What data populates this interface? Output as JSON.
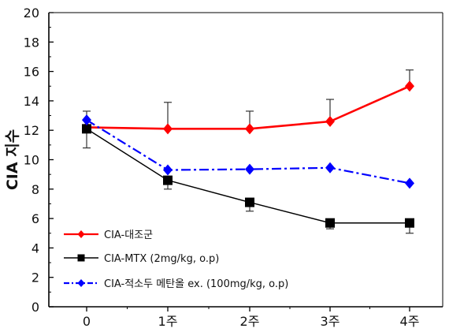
{
  "chart_data": {
    "type": "line",
    "xlabel": "",
    "ylabel": "CIA 지수",
    "categories": [
      "0",
      "1주",
      "2주",
      "3주",
      "4주"
    ],
    "ylim": [
      0,
      20
    ],
    "yticks": [
      0,
      2,
      4,
      6,
      8,
      10,
      12,
      14,
      16,
      18,
      20
    ],
    "grid": false,
    "legend_position": "bottom-left",
    "series": [
      {
        "name": "CIA-대조군",
        "color": "#ff0000",
        "line_style": "solid",
        "marker": "diamond",
        "values": [
          12.2,
          12.1,
          12.1,
          12.6,
          15.0
        ],
        "errors_upper": [
          0.0,
          1.8,
          1.2,
          1.5,
          1.1
        ]
      },
      {
        "name": "CIA-MTX (2mg/kg, o.p)",
        "color": "#000000",
        "line_style": "solid",
        "marker": "square",
        "values": [
          12.1,
          8.6,
          7.1,
          5.7,
          5.7
        ],
        "errors_lower": [
          1.3,
          0.6,
          0.6,
          0.4,
          0.7
        ]
      },
      {
        "name": "CIA-적소두 메탄올 ex. (100mg/kg, o.p)",
        "color": "#0000ff",
        "line_style": "dashdot",
        "marker": "diamond",
        "values": [
          12.7,
          9.3,
          9.35,
          9.45,
          8.4
        ],
        "errors_upper": [
          0.6,
          0.0,
          0.0,
          0.0,
          0.0
        ]
      }
    ]
  }
}
